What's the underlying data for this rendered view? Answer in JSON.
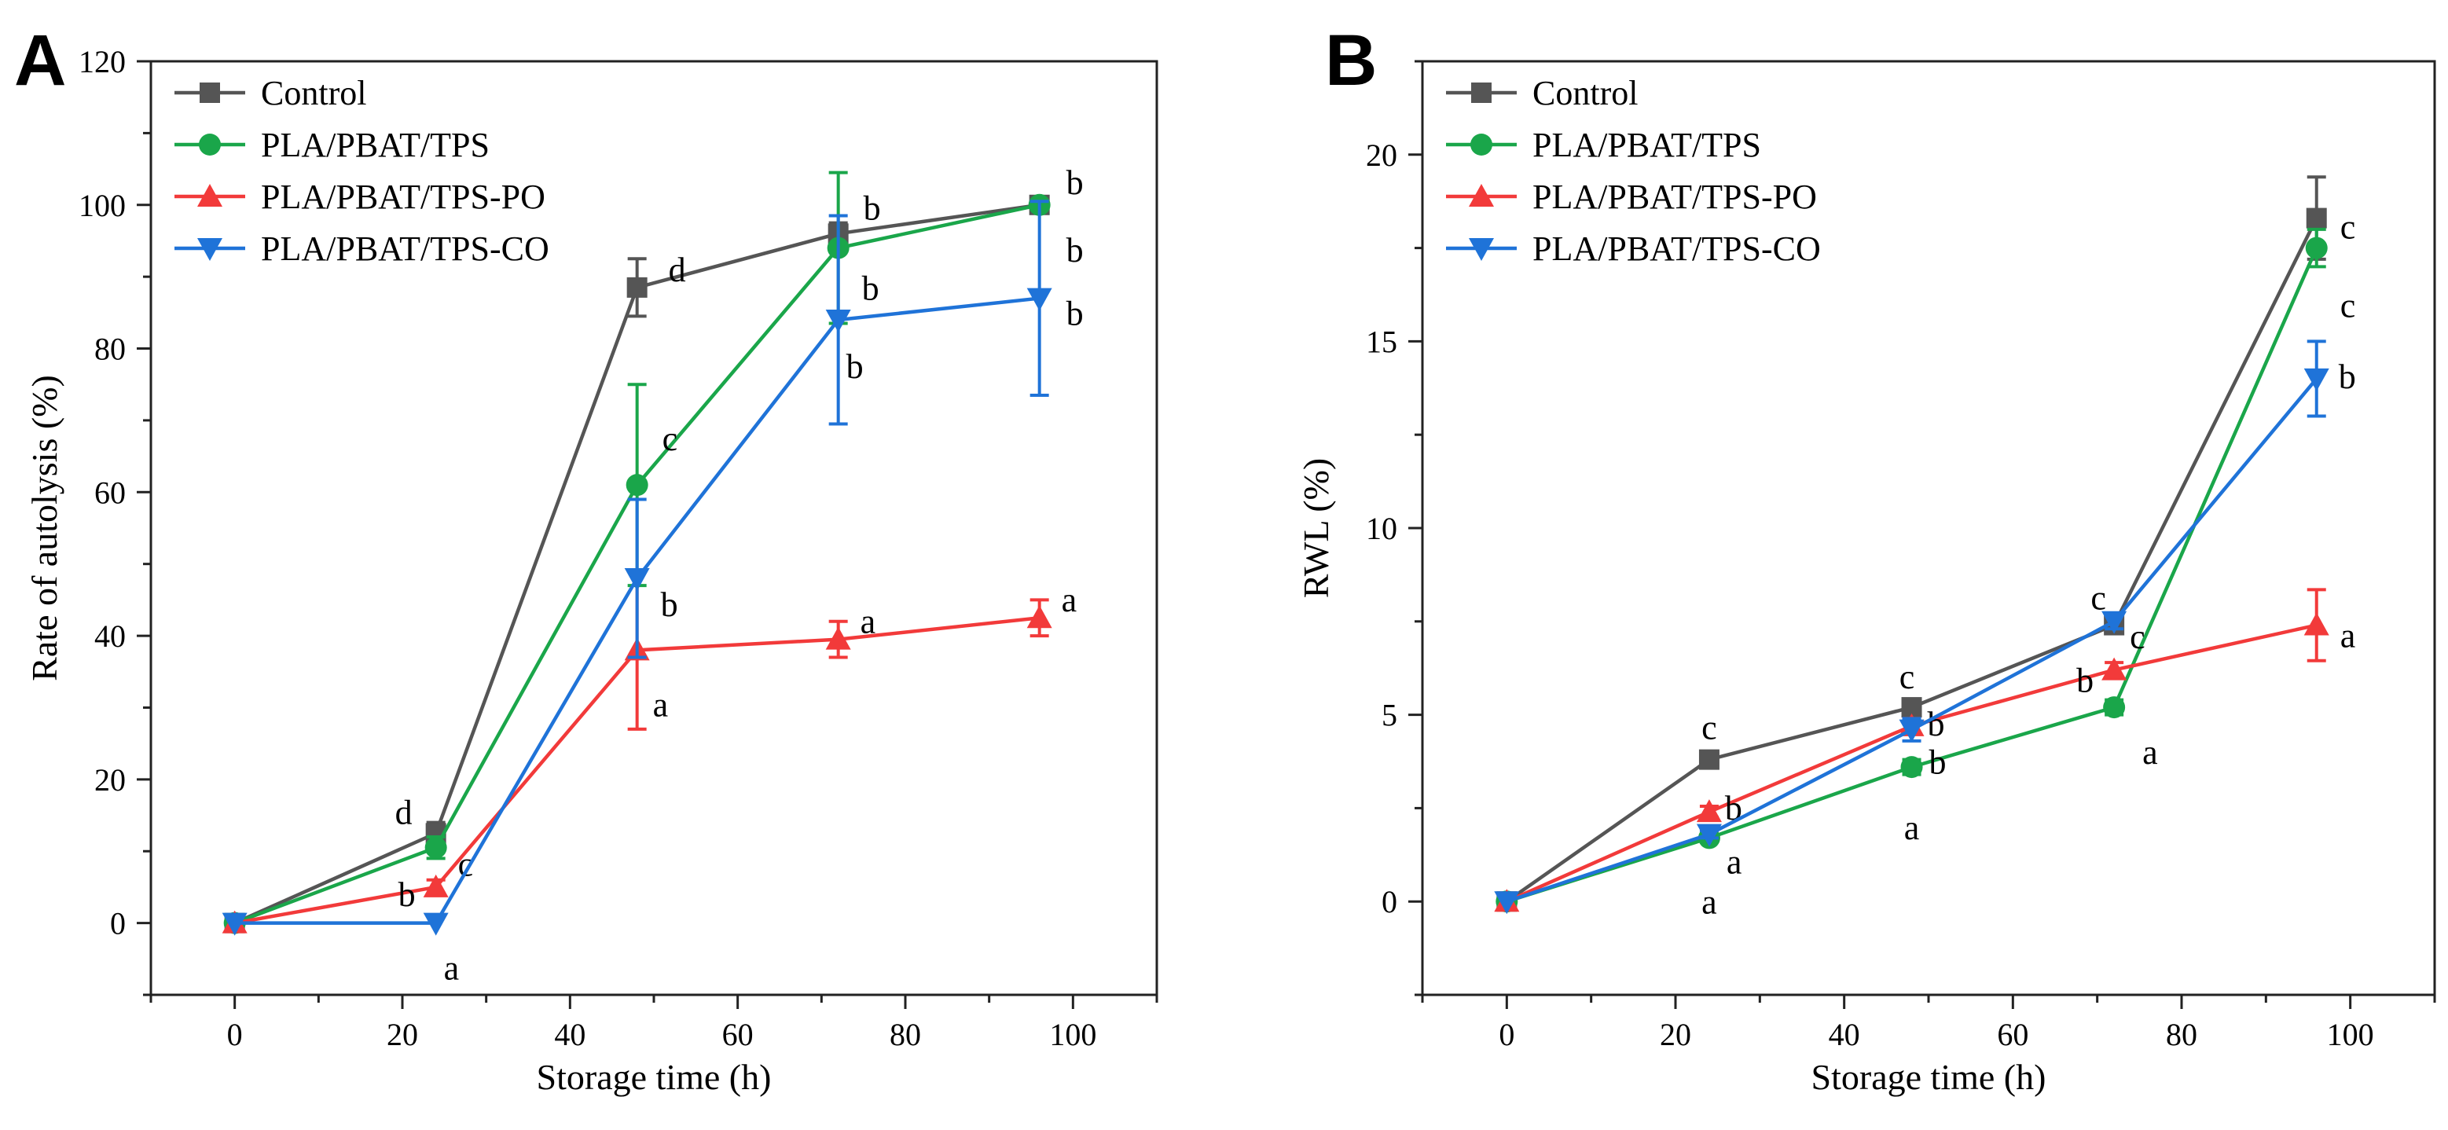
{
  "chart_data": [
    {
      "type": "line",
      "panel_label": "A",
      "xlabel": "Storage time (h)",
      "ylabel": "Rate of autolysis (%)",
      "xlim": [
        -10,
        110
      ],
      "ylim": [
        -10,
        120
      ],
      "xticks": [
        0,
        20,
        40,
        60,
        80,
        100
      ],
      "yticks": [
        0,
        20,
        40,
        60,
        80,
        100,
        120
      ],
      "legend_position": "top-left",
      "series": [
        {
          "name": "Control",
          "color": "#555555",
          "marker": "square",
          "x": [
            0,
            24,
            48,
            72,
            96
          ],
          "y": [
            0,
            12.5,
            88.5,
            96,
            100
          ],
          "err": [
            0,
            1.5,
            4,
            1.5,
            0.5
          ],
          "labels": [
            "",
            "d",
            "d",
            "b",
            "b"
          ]
        },
        {
          "name": "PLA/PBAT/TPS",
          "color": "#1aa64a",
          "marker": "circle",
          "x": [
            0,
            24,
            48,
            72,
            96
          ],
          "y": [
            0,
            10.5,
            61,
            94,
            100
          ],
          "err": [
            0,
            1.5,
            14,
            10.5,
            0.5
          ],
          "labels": [
            "",
            "c",
            "c",
            "b",
            "b"
          ]
        },
        {
          "name": "PLA/PBAT/TPS-PO",
          "color": "#f23a3a",
          "marker": "triangle-up",
          "x": [
            0,
            24,
            48,
            72,
            96
          ],
          "y": [
            0,
            5,
            38,
            39.5,
            42.5
          ],
          "err": [
            0,
            1,
            11,
            2.5,
            2.5
          ],
          "labels": [
            "",
            "b",
            "a",
            "a",
            "a"
          ]
        },
        {
          "name": "PLA/PBAT/TPS-CO",
          "color": "#1f73d8",
          "marker": "triangle-down",
          "x": [
            0,
            24,
            48,
            72,
            96
          ],
          "y": [
            0,
            0,
            48,
            84,
            87
          ],
          "err": [
            0,
            0,
            11,
            14.5,
            13.5
          ],
          "labels": [
            "",
            "a",
            "b",
            "b",
            "b"
          ]
        }
      ]
    },
    {
      "type": "line",
      "panel_label": "B",
      "xlabel": "Storage time (h)",
      "ylabel": "RWL  (%)",
      "xlim": [
        -10,
        110
      ],
      "ylim": [
        -2.5,
        22.5
      ],
      "xticks": [
        0,
        20,
        40,
        60,
        80,
        100
      ],
      "yticks": [
        0,
        5,
        10,
        15,
        20
      ],
      "legend_position": "top-left",
      "series": [
        {
          "name": "Control",
          "color": "#555555",
          "marker": "square",
          "x": [
            0,
            24,
            48,
            72,
            96
          ],
          "y": [
            0,
            3.8,
            5.2,
            7.4,
            18.3
          ],
          "err": [
            0,
            0.15,
            0.2,
            0.2,
            1.1
          ],
          "labels": [
            "",
            "c",
            "c",
            "c",
            "c"
          ]
        },
        {
          "name": "PLA/PBAT/TPS",
          "color": "#1aa64a",
          "marker": "circle",
          "x": [
            0,
            24,
            48,
            72,
            96
          ],
          "y": [
            0,
            1.7,
            3.6,
            5.2,
            17.5
          ],
          "err": [
            0,
            0.1,
            0.2,
            0.2,
            0.5
          ],
          "labels": [
            "",
            "a",
            "a",
            "a",
            "c"
          ]
        },
        {
          "name": "PLA/PBAT/TPS-PO",
          "color": "#f23a3a",
          "marker": "triangle-up",
          "x": [
            0,
            24,
            48,
            72,
            96
          ],
          "y": [
            0,
            2.4,
            4.7,
            6.2,
            7.4
          ],
          "err": [
            0,
            0.15,
            0.2,
            0.2,
            0.95
          ],
          "labels": [
            "",
            "b",
            "b",
            "b",
            "a"
          ]
        },
        {
          "name": "PLA/PBAT/TPS-CO",
          "color": "#1f73d8",
          "marker": "triangle-down",
          "x": [
            0,
            24,
            48,
            72,
            96
          ],
          "y": [
            0,
            1.8,
            4.6,
            7.5,
            14
          ],
          "err": [
            0,
            0.1,
            0.3,
            0.2,
            1
          ],
          "labels": [
            "",
            "a",
            "b",
            "c",
            "b"
          ]
        }
      ]
    }
  ]
}
